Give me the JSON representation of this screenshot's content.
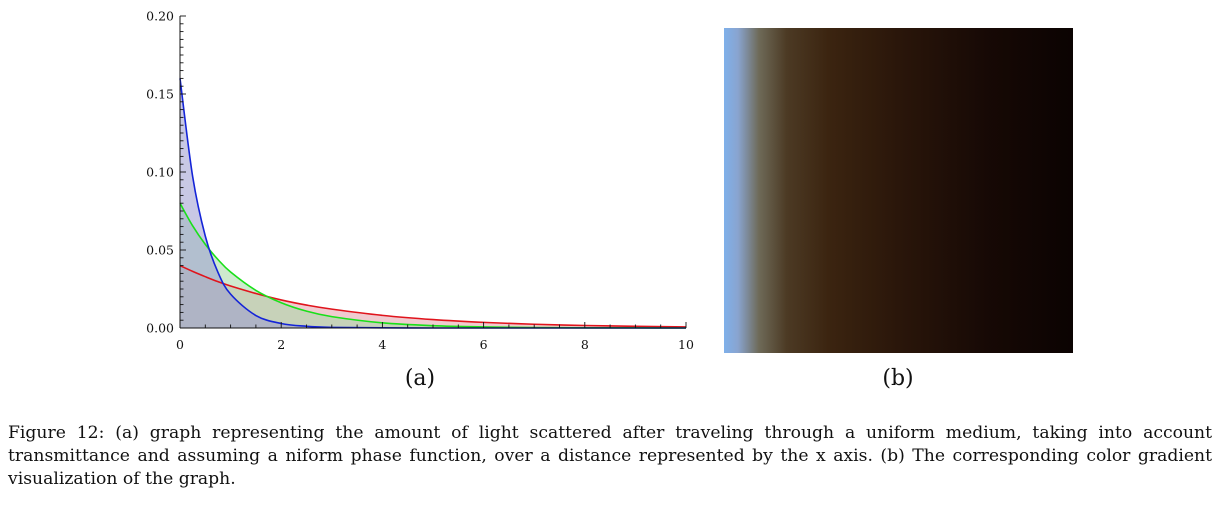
{
  "figure": {
    "sublabel_a": "(a)",
    "sublabel_b": "(b)",
    "caption": "Figure 12: (a) graph representing the amount of light scattered after traveling through a uniform medium, taking into account transmittance and assuming a niform phase function, over a distance represented by the x axis. (b) The corresponding color gradient visualization of the graph."
  },
  "chart_data": [
    {
      "type": "area",
      "title": "",
      "xlabel": "",
      "ylabel": "",
      "xlim": [
        0,
        10
      ],
      "ylim": [
        0,
        0.2
      ],
      "x_ticks": [
        "0",
        "2",
        "4",
        "6",
        "8",
        "10"
      ],
      "y_ticks": [
        "0.00",
        "0.05",
        "0.10",
        "0.15",
        "0.20"
      ],
      "grid": false,
      "x": [
        0,
        0.25,
        0.5,
        0.75,
        1,
        1.5,
        2,
        2.5,
        3,
        4,
        5,
        6,
        7,
        8,
        9,
        10
      ],
      "series": [
        {
          "color": "#e0141c",
          "fill": "#e3a0aa",
          "values": [
            0.04,
            0.0363,
            0.0329,
            0.0297,
            0.0269,
            0.0221,
            0.018,
            0.0147,
            0.0121,
            0.0081,
            0.0054,
            0.0036,
            0.0024,
            0.0016,
            0.0011,
            0.0007
          ]
        },
        {
          "color": "#19e019",
          "fill": "#a6d9a6",
          "values": [
            0.08,
            0.0655,
            0.0536,
            0.0439,
            0.0359,
            0.0241,
            0.0162,
            0.0108,
            0.0073,
            0.0033,
            0.0015,
            0.0007,
            0.0003,
            0.0001,
            0.0001,
            0.0
          ]
        },
        {
          "color": "#1424d8",
          "fill": "#9b9bd0",
          "values": [
            0.16,
            0.0971,
            0.0589,
            0.0357,
            0.0217,
            0.008,
            0.0029,
            0.0011,
            0.0004,
            0.0001,
            0.0,
            0.0,
            0.0,
            0.0,
            0.0,
            0.0
          ]
        }
      ]
    },
    {
      "type": "heatmap",
      "gradient_stops": [
        {
          "position": 0.0,
          "color": "#7fb0ea"
        },
        {
          "position": 0.04,
          "color": "#89a4cf"
        },
        {
          "position": 0.1,
          "color": "#6e6a58"
        },
        {
          "position": 0.18,
          "color": "#4c3a24"
        },
        {
          "position": 0.3,
          "color": "#3b2410"
        },
        {
          "position": 0.5,
          "color": "#2a160a"
        },
        {
          "position": 0.75,
          "color": "#170905"
        },
        {
          "position": 1.0,
          "color": "#0b0302"
        }
      ]
    }
  ]
}
